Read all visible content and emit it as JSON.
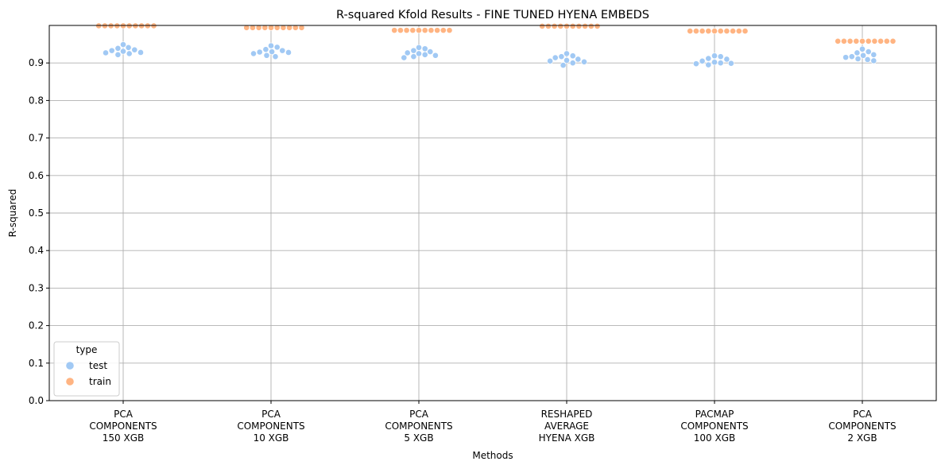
{
  "chart_data": {
    "type": "scatter",
    "title": "R-squared Kfold Results - FINE TUNED HYENA EMBEDS",
    "xlabel": "Methods",
    "ylabel": "R-squared",
    "ylim": [
      0.0,
      1.0
    ],
    "yticks": [
      "0.0",
      "0.1",
      "0.2",
      "0.3",
      "0.4",
      "0.5",
      "0.6",
      "0.7",
      "0.8",
      "0.9"
    ],
    "grid": true,
    "legend_position": "bottom-left",
    "legend_title": "type",
    "categories": [
      [
        "PCA",
        "COMPONENTS",
        "150 XGB"
      ],
      [
        "PCA",
        "COMPONENTS",
        "10 XGB"
      ],
      [
        "PCA",
        "COMPONENTS",
        "5 XGB"
      ],
      [
        "RESHAPED",
        "AVERAGE",
        "HYENA XGB"
      ],
      [
        "PACMAP",
        "COMPONENTS",
        "100 XGB"
      ],
      [
        "PCA",
        "COMPONENTS",
        "2 XGB"
      ]
    ],
    "series": [
      {
        "name": "test",
        "color": "#a1c9f4",
        "values": [
          [
            0.949,
            0.941,
            0.939,
            0.935,
            0.933,
            0.931,
            0.928,
            0.927,
            0.925,
            0.922
          ],
          [
            0.946,
            0.942,
            0.936,
            0.933,
            0.93,
            0.929,
            0.928,
            0.925,
            0.92,
            0.917
          ],
          [
            0.941,
            0.938,
            0.933,
            0.93,
            0.927,
            0.925,
            0.922,
            0.92,
            0.917,
            0.914
          ],
          [
            0.925,
            0.919,
            0.917,
            0.914,
            0.91,
            0.907,
            0.905,
            0.903,
            0.9,
            0.894
          ],
          [
            0.919,
            0.917,
            0.912,
            0.91,
            0.905,
            0.902,
            0.9,
            0.899,
            0.898,
            0.895
          ],
          [
            0.937,
            0.93,
            0.927,
            0.922,
            0.92,
            0.917,
            0.915,
            0.911,
            0.909,
            0.906
          ]
        ]
      },
      {
        "name": "train",
        "color": "#ffb482",
        "values": [
          [
            0.999,
            0.999,
            0.999,
            0.999,
            0.999,
            0.999,
            0.999,
            0.999,
            0.999,
            0.999
          ],
          [
            0.994,
            0.994,
            0.994,
            0.994,
            0.994,
            0.994,
            0.994,
            0.994,
            0.994,
            0.994
          ],
          [
            0.987,
            0.987,
            0.987,
            0.987,
            0.987,
            0.987,
            0.987,
            0.987,
            0.987,
            0.987
          ],
          [
            0.998,
            0.998,
            0.998,
            0.998,
            0.998,
            0.998,
            0.998,
            0.998,
            0.998,
            0.998
          ],
          [
            0.985,
            0.985,
            0.985,
            0.985,
            0.985,
            0.985,
            0.985,
            0.985,
            0.985,
            0.985
          ],
          [
            0.958,
            0.958,
            0.958,
            0.958,
            0.958,
            0.958,
            0.958,
            0.958,
            0.958,
            0.958
          ]
        ]
      }
    ]
  }
}
